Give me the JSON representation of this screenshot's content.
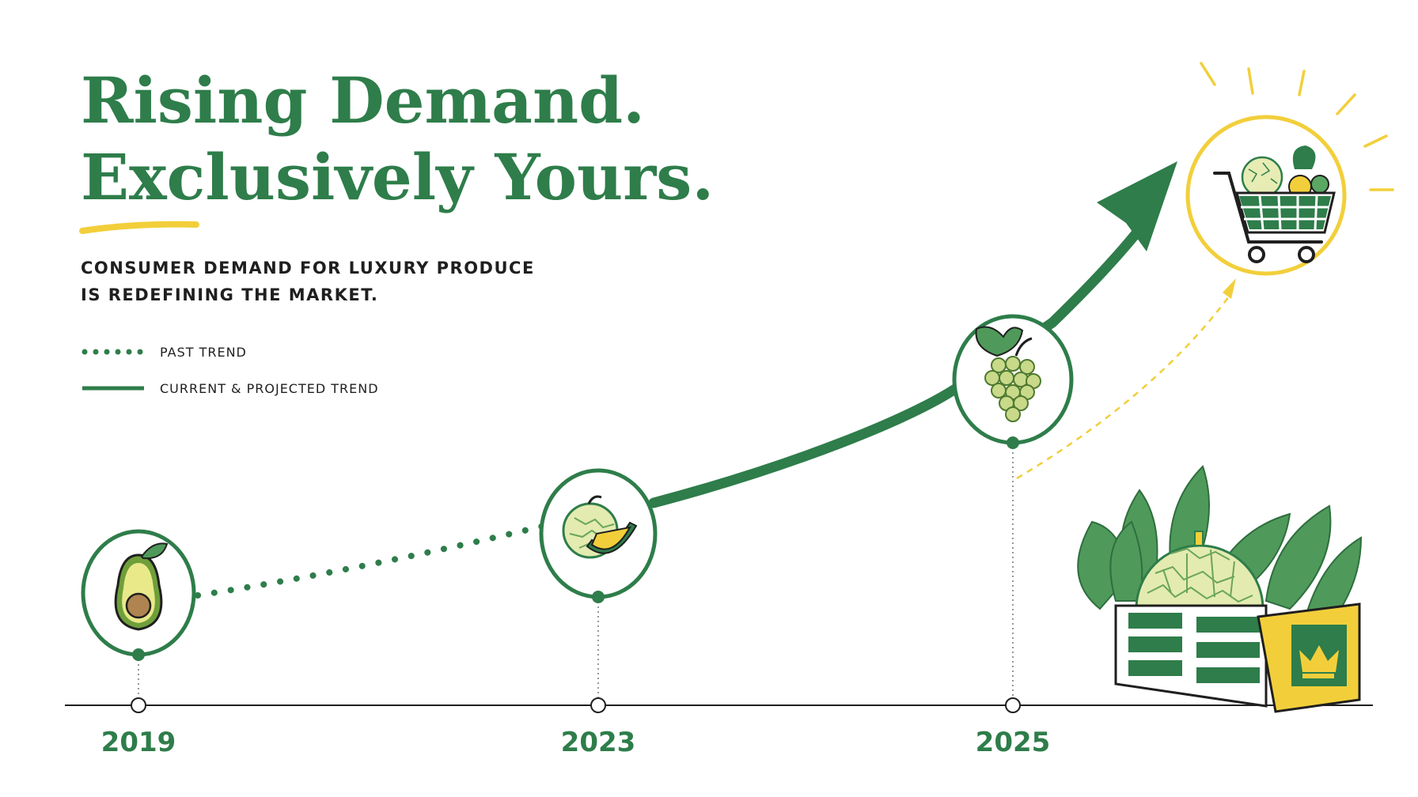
{
  "header": {
    "title_line1": "Rising Demand.",
    "title_line2": "Exclusively Yours.",
    "subtitle_line1": "CONSUMER DEMAND FOR LUXURY PRODUCE",
    "subtitle_line2": "IS REDEFINING THE MARKET."
  },
  "legend": {
    "past": "PAST TREND",
    "current": "CURRENT & PROJECTED TREND"
  },
  "colors": {
    "green": "#2e7d4a",
    "yellow": "#f2cf3a",
    "pale_green": "#c9d98a",
    "ink": "#1f1f1f"
  },
  "chart_data": {
    "type": "line",
    "x": [
      "2019",
      "2023",
      "2025"
    ],
    "milestones": [
      {
        "year": "2019",
        "icon": "avocado-icon",
        "level": 0.22
      },
      {
        "year": "2023",
        "icon": "melon-icon",
        "level": 0.42
      },
      {
        "year": "2025",
        "icon": "grapes-icon",
        "level": 0.68
      }
    ],
    "segments": [
      {
        "legend": "PAST TREND",
        "from": "2019",
        "to": "2023",
        "style": "dotted"
      },
      {
        "legend": "CURRENT & PROJECTED TREND",
        "from": "2023",
        "to": "projected",
        "style": "solid-arrow"
      }
    ],
    "endpoint_icon": "shopping-cart-icon",
    "illustration_icon": "produce-crate-icon"
  }
}
